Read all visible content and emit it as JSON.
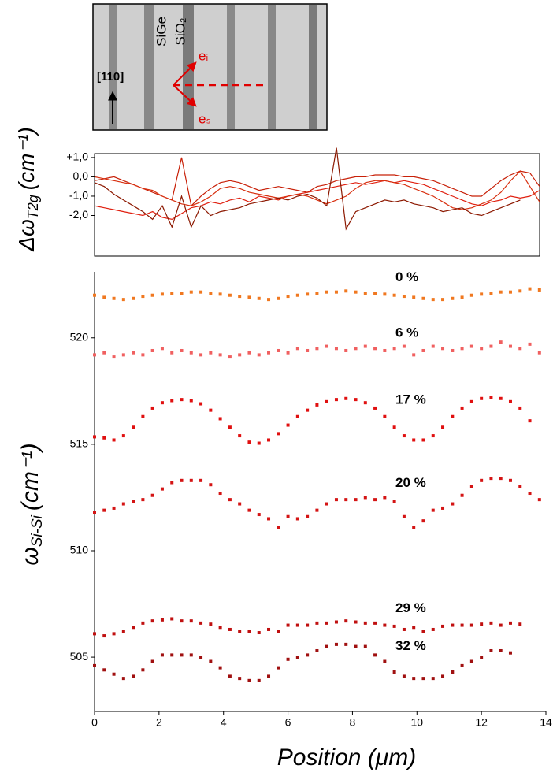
{
  "inset": {
    "labels": [
      "SiGe",
      "SiO₂",
      "[110]",
      "eᵢ",
      "eₛ"
    ]
  },
  "chart_data": [
    {
      "type": "line",
      "ylabel": "Δω",
      "ylabel_sub": "T2g",
      "ylabel_unit": "(cm⁻¹)",
      "xlim": [
        0,
        13.8
      ],
      "ylim": [
        -4.1,
        1.2
      ],
      "yticks": [
        {
          "value": 1,
          "label": "+1,0"
        },
        {
          "value": 0,
          "label": "0,0"
        },
        {
          "value": -1,
          "label": "-1,0"
        },
        {
          "value": -2,
          "label": "-2,0"
        }
      ],
      "x": [
        0,
        0.3,
        0.6,
        0.9,
        1.2,
        1.5,
        1.8,
        2.1,
        2.4,
        2.7,
        3,
        3.3,
        3.6,
        3.9,
        4.2,
        4.5,
        4.8,
        5.1,
        5.4,
        5.7,
        6,
        6.3,
        6.6,
        6.9,
        7.2,
        7.5,
        7.8,
        8.1,
        8.4,
        8.7,
        9,
        9.3,
        9.6,
        9.9,
        10.2,
        10.5,
        10.8,
        11.1,
        11.4,
        11.7,
        12,
        12.3,
        12.6,
        12.9,
        13.2,
        13.5,
        13.8
      ],
      "series": [
        {
          "color": "#e02010",
          "values": [
            -1.5,
            -1.6,
            -1.7,
            -1.8,
            -1.9,
            -2.0,
            -1.8,
            -2.1,
            -2.2,
            -1.9,
            -1.6,
            -1.5,
            -1.3,
            -1.4,
            -1.2,
            -1.1,
            -1.3,
            -1.0,
            -1.1,
            -1.2,
            -1.0,
            -0.9,
            -0.8,
            -0.7,
            -0.6,
            -0.5,
            -0.4,
            -0.3,
            -0.4,
            -0.3,
            -0.2,
            -0.3,
            -0.2,
            -0.3,
            -0.4,
            -0.6,
            -0.8,
            -1.0,
            -1.2,
            -1.4,
            -1.5,
            -1.3,
            -1.2,
            -1.0,
            -1.1,
            -1.0,
            -0.7
          ]
        },
        {
          "color": "#c82008",
          "values": [
            -0.2,
            -0.1,
            0.0,
            -0.2,
            -0.4,
            -0.6,
            -0.8,
            -1.0,
            -1.2,
            1.0,
            -1.5,
            -1.0,
            -0.6,
            -0.3,
            -0.2,
            -0.3,
            -0.5,
            -0.7,
            -0.6,
            -0.5,
            -0.6,
            -0.7,
            -0.8,
            -0.5,
            -0.4,
            -0.2,
            -0.1,
            0.0,
            0.0,
            0.1,
            0.1,
            0.1,
            0.0,
            0.0,
            -0.1,
            -0.2,
            -0.4,
            -0.6,
            -0.8,
            -1.0,
            -1.0,
            -0.6,
            -0.2,
            0.1,
            0.3,
            0.2,
            -0.5
          ]
        },
        {
          "color": "#d83010",
          "values": [
            0.0,
            -0.1,
            -0.2,
            -0.3,
            -0.4,
            -0.6,
            -0.7,
            -1.0,
            -1.2,
            -1.4,
            -1.5,
            -1.3,
            -1.0,
            -0.6,
            -0.5,
            -0.6,
            -0.8,
            -0.9,
            -1.0,
            -1.1,
            -1.0,
            -0.9,
            -1.0,
            -1.2,
            -1.4,
            -1.2,
            -1.0,
            -0.6,
            -0.3,
            -0.2,
            -0.2,
            -0.3,
            -0.4,
            -0.6,
            -0.8,
            -1.0,
            -1.3,
            -1.6,
            -1.7,
            -1.6,
            -1.4,
            -1.2,
            -0.8,
            -0.2,
            0.3,
            -0.5,
            -1.3
          ]
        },
        {
          "color": "#8c1800",
          "values": [
            -0.3,
            -0.5,
            -0.9,
            -1.2,
            -1.5,
            -1.8,
            -2.2,
            -1.5,
            -2.6,
            -1.0,
            -2.6,
            -1.5,
            -2.0,
            -1.8,
            -1.7,
            -1.6,
            -1.4,
            -1.3,
            -1.2,
            -1.1,
            -1.2,
            -1.0,
            -0.9,
            -1.1,
            -1.5,
            1.5,
            -2.7,
            -1.8,
            -1.6,
            -1.4,
            -1.2,
            -1.3,
            -1.2,
            -1.4,
            -1.5,
            -1.6,
            -1.8,
            -1.7,
            -1.6,
            -1.9,
            -2.0,
            -1.8,
            -1.6,
            -1.4,
            -1.2,
            null,
            null
          ]
        }
      ]
    },
    {
      "type": "scatter",
      "ylabel": "ω",
      "ylabel_sub": "Si-Si",
      "ylabel_unit": "(cm⁻¹)",
      "xlabel": "Position (μm)",
      "xlim": [
        0,
        14
      ],
      "ylim": [
        502.45,
        523.1
      ],
      "xticks": [
        0,
        2,
        4,
        6,
        8,
        10,
        12,
        14
      ],
      "yticks": [
        505,
        510,
        515,
        520
      ],
      "x": [
        0,
        0.3,
        0.6,
        0.9,
        1.2,
        1.5,
        1.8,
        2.1,
        2.4,
        2.7,
        3,
        3.3,
        3.6,
        3.9,
        4.2,
        4.5,
        4.8,
        5.1,
        5.4,
        5.7,
        6,
        6.3,
        6.6,
        6.9,
        7.2,
        7.5,
        7.8,
        8.1,
        8.4,
        8.7,
        9,
        9.3,
        9.6,
        9.9,
        10.2,
        10.5,
        10.8,
        11.1,
        11.4,
        11.7,
        12,
        12.3,
        12.6,
        12.9,
        13.2,
        13.5,
        13.8
      ],
      "series": [
        {
          "name": "0 %",
          "color": "#f07820",
          "values": [
            522.0,
            521.9,
            521.85,
            521.8,
            521.85,
            521.95,
            522.0,
            522.05,
            522.1,
            522.1,
            522.15,
            522.15,
            522.1,
            522.05,
            522.0,
            521.95,
            521.9,
            521.85,
            521.8,
            521.85,
            521.95,
            522.0,
            522.05,
            522.1,
            522.15,
            522.15,
            522.2,
            522.15,
            522.1,
            522.1,
            522.05,
            522.0,
            521.95,
            521.9,
            521.85,
            521.8,
            521.8,
            521.85,
            521.9,
            522.0,
            522.05,
            522.1,
            522.15,
            522.15,
            522.2,
            522.3,
            522.25
          ]
        },
        {
          "name": "6 %",
          "color": "#f06060",
          "values": [
            519.2,
            519.3,
            519.1,
            519.2,
            519.3,
            519.2,
            519.4,
            519.5,
            519.3,
            519.4,
            519.3,
            519.2,
            519.3,
            519.2,
            519.1,
            519.2,
            519.3,
            519.2,
            519.3,
            519.4,
            519.3,
            519.5,
            519.4,
            519.5,
            519.6,
            519.5,
            519.4,
            519.5,
            519.6,
            519.5,
            519.4,
            519.5,
            519.6,
            519.2,
            519.4,
            519.6,
            519.5,
            519.4,
            519.5,
            519.6,
            519.5,
            519.6,
            519.8,
            519.6,
            519.5,
            519.7,
            519.3
          ]
        },
        {
          "name": "17 %",
          "color": "#e01010",
          "values": [
            515.35,
            515.3,
            515.2,
            515.4,
            515.8,
            516.3,
            516.7,
            516.95,
            517.05,
            517.1,
            517.05,
            516.9,
            516.6,
            516.2,
            515.8,
            515.4,
            515.1,
            515.05,
            515.2,
            515.5,
            515.9,
            516.3,
            516.6,
            516.85,
            517.0,
            517.1,
            517.15,
            517.1,
            516.95,
            516.7,
            516.3,
            515.8,
            515.4,
            515.2,
            515.2,
            515.4,
            515.8,
            516.3,
            516.7,
            517.0,
            517.15,
            517.2,
            517.15,
            517.0,
            516.7,
            516.1,
            null
          ]
        },
        {
          "name": "20 %",
          "color": "#d41414",
          "values": [
            511.8,
            511.9,
            512.0,
            512.2,
            512.3,
            512.4,
            512.6,
            512.9,
            513.2,
            513.3,
            513.3,
            513.3,
            513.1,
            512.7,
            512.4,
            512.2,
            511.9,
            511.7,
            511.5,
            511.1,
            511.6,
            511.5,
            511.6,
            511.9,
            512.2,
            512.4,
            512.4,
            512.4,
            512.5,
            512.4,
            512.5,
            512.3,
            511.6,
            511.1,
            511.4,
            511.9,
            512.0,
            512.2,
            512.6,
            513.0,
            513.3,
            513.4,
            513.4,
            513.3,
            513.0,
            512.7,
            512.4
          ]
        },
        {
          "name": "29 %",
          "color": "#c01010",
          "values": [
            506.1,
            506.0,
            506.1,
            506.2,
            506.4,
            506.6,
            506.7,
            506.75,
            506.8,
            506.7,
            506.7,
            506.6,
            506.55,
            506.4,
            506.3,
            506.2,
            506.2,
            506.15,
            506.3,
            506.2,
            506.5,
            506.5,
            506.5,
            506.6,
            506.6,
            506.65,
            506.7,
            506.65,
            506.6,
            506.6,
            506.5,
            506.45,
            506.3,
            506.4,
            506.2,
            506.3,
            506.45,
            506.5,
            506.5,
            506.5,
            506.55,
            506.6,
            506.5,
            506.6,
            506.55,
            null,
            null
          ]
        },
        {
          "name": "32 %",
          "color": "#a01010",
          "values": [
            504.6,
            504.4,
            504.2,
            504.0,
            504.1,
            504.4,
            504.8,
            505.1,
            505.1,
            505.1,
            505.1,
            505.0,
            504.8,
            504.5,
            504.1,
            504.0,
            503.9,
            503.9,
            504.1,
            504.5,
            504.9,
            505.0,
            505.1,
            505.3,
            505.5,
            505.6,
            505.6,
            505.5,
            505.5,
            505.1,
            504.8,
            504.3,
            504.1,
            504.0,
            504.0,
            504.0,
            504.1,
            504.3,
            504.6,
            504.8,
            505.0,
            505.3,
            505.3,
            505.2,
            null,
            null,
            null
          ]
        }
      ]
    }
  ]
}
